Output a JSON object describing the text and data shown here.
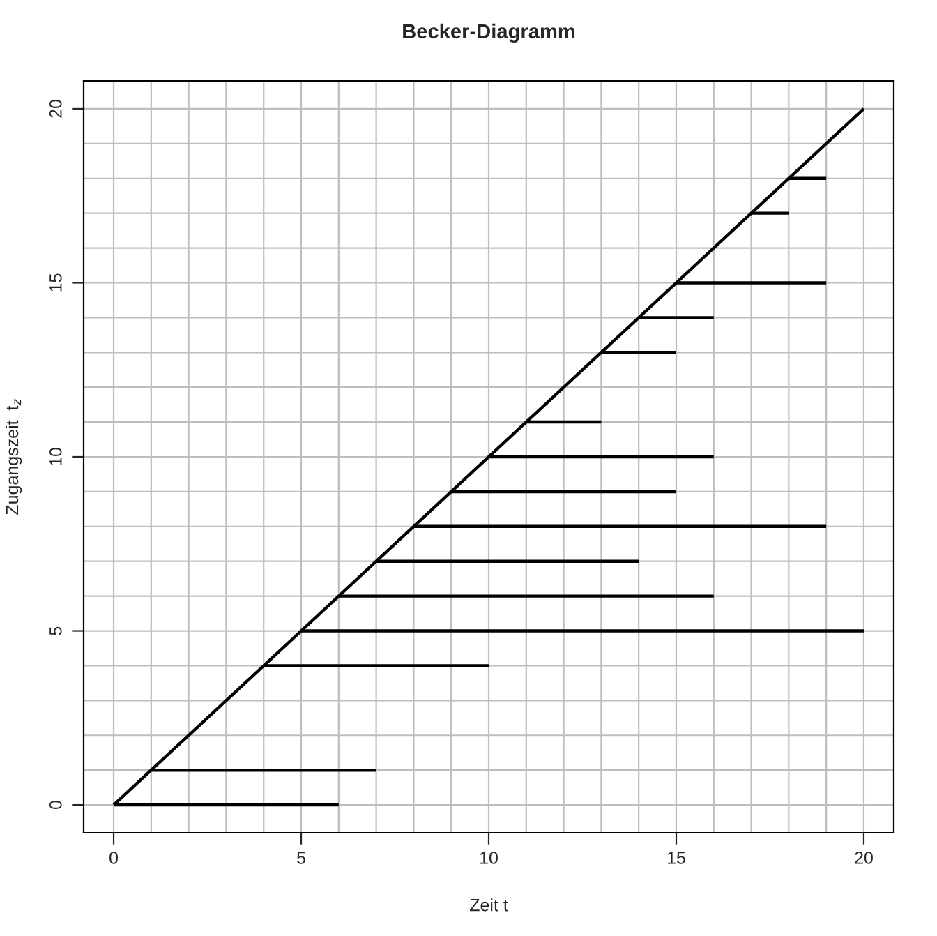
{
  "chart_data": {
    "type": "line",
    "title": "Becker-Diagramm",
    "xlabel": "Zeit t",
    "ylabel": "Zugangszeit  t$_{z}$",
    "xlim": [
      -0.8,
      20.8
    ],
    "ylim": [
      -0.8,
      20.8
    ],
    "xticks": [
      0,
      {
        "value": 1,
        "label": null
      },
      {
        "value": 2,
        "label": null
      },
      {
        "value": 3,
        "label": null
      },
      {
        "value": 4,
        "label": null
      },
      5,
      {
        "value": 6,
        "label": null
      },
      {
        "value": 7,
        "label": null
      },
      {
        "value": 8,
        "label": null
      },
      {
        "value": 9,
        "label": null
      },
      10,
      {
        "value": 11,
        "label": null
      },
      {
        "value": 12,
        "label": null
      },
      {
        "value": 13,
        "label": null
      },
      {
        "value": 14,
        "label": null
      },
      15,
      {
        "value": 16,
        "label": null
      },
      {
        "value": 17,
        "label": null
      },
      {
        "value": 18,
        "label": null
      },
      {
        "value": 19,
        "label": null
      },
      20
    ],
    "yticks": [
      0,
      {
        "value": 1,
        "label": null
      },
      {
        "value": 2,
        "label": null
      },
      {
        "value": 3,
        "label": null
      },
      {
        "value": 4,
        "label": null
      },
      5,
      {
        "value": 6,
        "label": null
      },
      {
        "value": 7,
        "label": null
      },
      {
        "value": 8,
        "label": null
      },
      {
        "value": 9,
        "label": null
      },
      10,
      {
        "value": 11,
        "label": null
      },
      {
        "value": 12,
        "label": null
      },
      {
        "value": 13,
        "label": null
      },
      {
        "value": 14,
        "label": null
      },
      15,
      {
        "value": 16,
        "label": null
      },
      {
        "value": 17,
        "label": null
      },
      {
        "value": 18,
        "label": null
      },
      {
        "value": 19,
        "label": null
      },
      20
    ],
    "grid": true,
    "line_style": "solid",
    "series": [
      {
        "color": "#000000",
        "x": [
          0,
          20
        ],
        "values": [
          0,
          20
        ]
      },
      {
        "color": "#000000",
        "x": [
          0,
          6
        ],
        "values": [
          0,
          0
        ]
      },
      {
        "color": "#000000",
        "x": [
          1,
          7
        ],
        "values": [
          1,
          1
        ]
      },
      {
        "color": "#000000",
        "x": [
          4,
          10
        ],
        "values": [
          4,
          4
        ]
      },
      {
        "color": "#000000",
        "x": [
          5,
          20
        ],
        "values": [
          5,
          5
        ]
      },
      {
        "color": "#000000",
        "x": [
          6,
          16
        ],
        "values": [
          6,
          6
        ]
      },
      {
        "color": "#000000",
        "x": [
          7,
          14
        ],
        "values": [
          7,
          7
        ]
      },
      {
        "color": "#000000",
        "x": [
          8,
          19
        ],
        "values": [
          8,
          8
        ]
      },
      {
        "color": "#000000",
        "x": [
          9,
          15
        ],
        "values": [
          9,
          9
        ]
      },
      {
        "color": "#000000",
        "x": [
          10,
          16
        ],
        "values": [
          10,
          10
        ]
      },
      {
        "color": "#000000",
        "x": [
          11,
          13
        ],
        "values": [
          11,
          11
        ]
      },
      {
        "color": "#000000",
        "x": [
          13,
          15
        ],
        "values": [
          13,
          13
        ]
      },
      {
        "color": "#000000",
        "x": [
          14,
          16
        ],
        "values": [
          14,
          14
        ]
      },
      {
        "color": "#000000",
        "x": [
          15,
          19
        ],
        "values": [
          15,
          15
        ]
      },
      {
        "color": "#000000",
        "x": [
          17,
          18
        ],
        "values": [
          17,
          17
        ]
      },
      {
        "color": "#000000",
        "x": [
          18,
          19
        ],
        "values": [
          18,
          18
        ]
      }
    ]
  }
}
